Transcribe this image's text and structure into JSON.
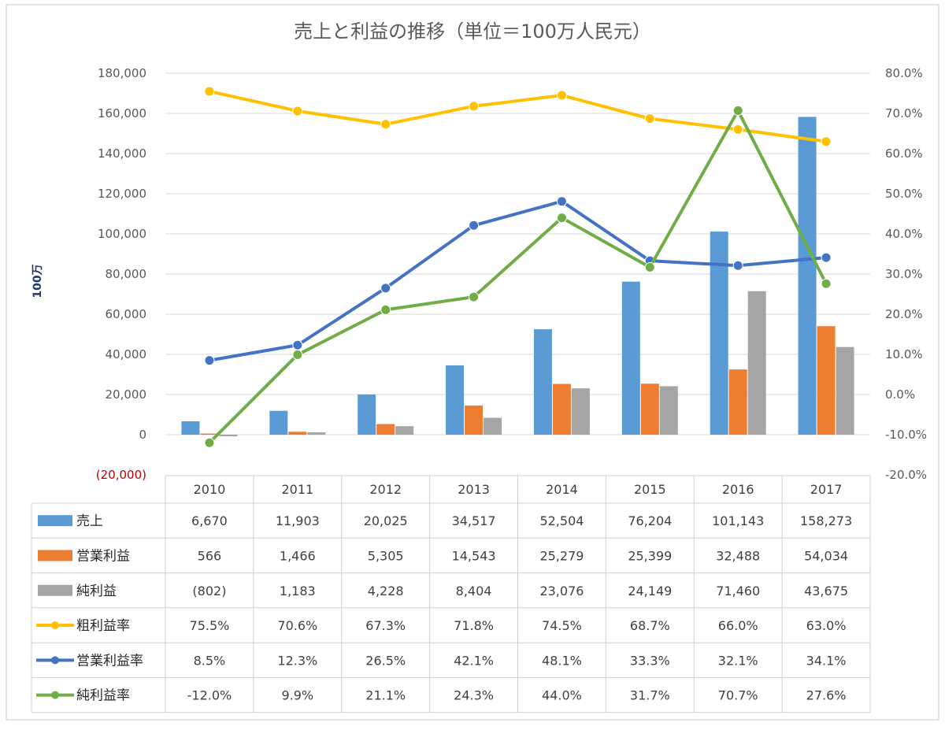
{
  "chart_data": {
    "type": "bar",
    "title": "売上と利益の推移（単位＝100万人民元）",
    "ylabel": "100万",
    "categories": [
      "2010",
      "2011",
      "2012",
      "2013",
      "2014",
      "2015",
      "2016",
      "2017"
    ],
    "y_left": {
      "min": -20000,
      "max": 180000,
      "step": 20000,
      "tick_labels": [
        "(20,000)",
        "0",
        "20,000",
        "40,000",
        "60,000",
        "80,000",
        "100,000",
        "120,000",
        "140,000",
        "160,000",
        "180,000"
      ]
    },
    "y_right": {
      "min": -20,
      "max": 80,
      "step": 10,
      "tick_labels": [
        "-20.0%",
        "-10.0%",
        "0.0%",
        "10.0%",
        "20.0%",
        "30.0%",
        "40.0%",
        "50.0%",
        "60.0%",
        "70.0%",
        "80.0%"
      ]
    },
    "grid": true,
    "bar_series": [
      {
        "name": "売上",
        "color": "#5b9bd5",
        "values": [
          6670,
          11903,
          20025,
          34517,
          52504,
          76204,
          101143,
          158273
        ],
        "labels": [
          "6,670",
          "11,903",
          "20,025",
          "34,517",
          "52,504",
          "76,204",
          "101,143",
          "158,273"
        ]
      },
      {
        "name": "営業利益",
        "color": "#ed7d31",
        "values": [
          566,
          1466,
          5305,
          14543,
          25279,
          25399,
          32488,
          54034
        ],
        "labels": [
          "566",
          "1,466",
          "5,305",
          "14,543",
          "25,279",
          "25,399",
          "32,488",
          "54,034"
        ]
      },
      {
        "name": "純利益",
        "color": "#a5a5a5",
        "values": [
          -802,
          1183,
          4228,
          8404,
          23076,
          24149,
          71460,
          43675
        ],
        "labels": [
          "(802)",
          "1,183",
          "4,228",
          "8,404",
          "23,076",
          "24,149",
          "71,460",
          "43,675"
        ]
      }
    ],
    "line_series": [
      {
        "name": "粗利益率",
        "color": "#ffc000",
        "values": [
          75.5,
          70.6,
          67.3,
          71.8,
          74.5,
          68.7,
          66.0,
          63.0
        ],
        "labels": [
          "75.5%",
          "70.6%",
          "67.3%",
          "71.8%",
          "74.5%",
          "68.7%",
          "66.0%",
          "63.0%"
        ]
      },
      {
        "name": "営業利益率",
        "color": "#4472c4",
        "values": [
          8.5,
          12.3,
          26.5,
          42.1,
          48.1,
          33.3,
          32.1,
          34.1
        ],
        "labels": [
          "8.5%",
          "12.3%",
          "26.5%",
          "42.1%",
          "48.1%",
          "33.3%",
          "32.1%",
          "34.1%"
        ]
      },
      {
        "name": "純利益率",
        "color": "#70ad47",
        "values": [
          -12.0,
          9.9,
          21.1,
          24.3,
          44.0,
          31.7,
          70.7,
          27.6
        ],
        "labels": [
          "-12.0%",
          "9.9%",
          "21.1%",
          "24.3%",
          "44.0%",
          "31.7%",
          "70.7%",
          "27.6%"
        ]
      }
    ],
    "legend_placement": "data-table-bottom"
  }
}
